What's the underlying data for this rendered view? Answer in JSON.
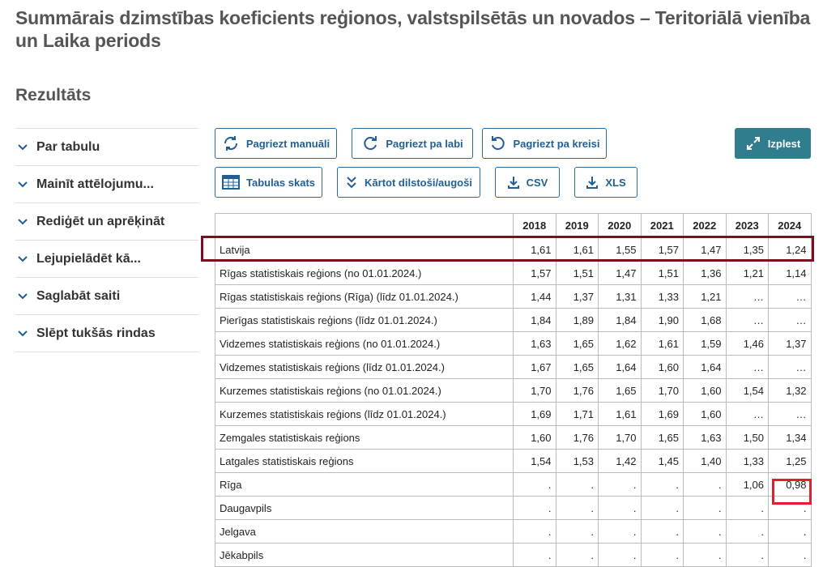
{
  "header": {
    "title": "Summārais dzimstības koeficients reģionos, valstspilsētās un novados – Teritoriālā vienība un Laika periods",
    "subtitle": "Rezultāts"
  },
  "sidebar": {
    "items": [
      "Par tabulu",
      "Mainīt attēlojumu...",
      "Rediģēt un aprēķināt",
      "Lejupielādēt kā...",
      "Saglabāt saiti",
      "Slēpt tukšās rindas"
    ]
  },
  "toolbar": {
    "rotate_manual": "Pagriezt manuāli",
    "rotate_right": "Pagriezt pa labi",
    "rotate_left": "Pagriezt pa kreisi",
    "expand": "Izplest",
    "table_view": "Tabulas skats",
    "sort": "Kārtot dilstoši/augoši",
    "csv": "CSV",
    "xls": "XLS"
  },
  "table": {
    "columns": [
      "2018",
      "2019",
      "2020",
      "2021",
      "2022",
      "2023",
      "2024"
    ],
    "rows": [
      [
        "Latvija",
        "1,61",
        "1,61",
        "1,55",
        "1,57",
        "1,47",
        "1,35",
        "1,24"
      ],
      [
        "Rīgas statistiskais reģions (no 01.01.2024.)",
        "1,57",
        "1,51",
        "1,47",
        "1,51",
        "1,36",
        "1,21",
        "1,14"
      ],
      [
        "Rīgas statistiskais reģions (Rīga) (līdz 01.01.2024.)",
        "1,44",
        "1,37",
        "1,31",
        "1,33",
        "1,21",
        "…",
        "…"
      ],
      [
        "Pierīgas statistiskais reģions (līdz 01.01.2024.)",
        "1,84",
        "1,89",
        "1,84",
        "1,90",
        "1,68",
        "…",
        "…"
      ],
      [
        "Vidzemes statistiskais reģions (no 01.01.2024.)",
        "1,63",
        "1,65",
        "1,62",
        "1,61",
        "1,59",
        "1,46",
        "1,37"
      ],
      [
        "Vidzemes statistiskais reģions (līdz 01.01.2024.)",
        "1,67",
        "1,65",
        "1,64",
        "1,60",
        "1,64",
        "…",
        "…"
      ],
      [
        "Kurzemes statistiskais reģions (no 01.01.2024.)",
        "1,70",
        "1,76",
        "1,65",
        "1,70",
        "1,60",
        "1,54",
        "1,32"
      ],
      [
        "Kurzemes statistiskais reģions (līdz 01.01.2024.)",
        "1,69",
        "1,71",
        "1,61",
        "1,69",
        "1,60",
        "…",
        "…"
      ],
      [
        "Zemgales statistiskais reģions",
        "1,60",
        "1,76",
        "1,70",
        "1,65",
        "1,63",
        "1,50",
        "1,34"
      ],
      [
        "Latgales statistiskais reģions",
        "1,54",
        "1,53",
        "1,42",
        "1,45",
        "1,40",
        "1,33",
        "1,25"
      ],
      [
        "Rīga",
        ".",
        ".",
        ".",
        ".",
        ".",
        "1,06",
        "0,98"
      ],
      [
        "Daugavpils",
        ".",
        ".",
        ".",
        ".",
        ".",
        ".",
        "."
      ],
      [
        "Jelgava",
        ".",
        ".",
        ".",
        ".",
        ".",
        ".",
        "."
      ],
      [
        "Jēkabpils",
        ".",
        ".",
        ".",
        ".",
        ".",
        ".",
        "."
      ]
    ]
  }
}
